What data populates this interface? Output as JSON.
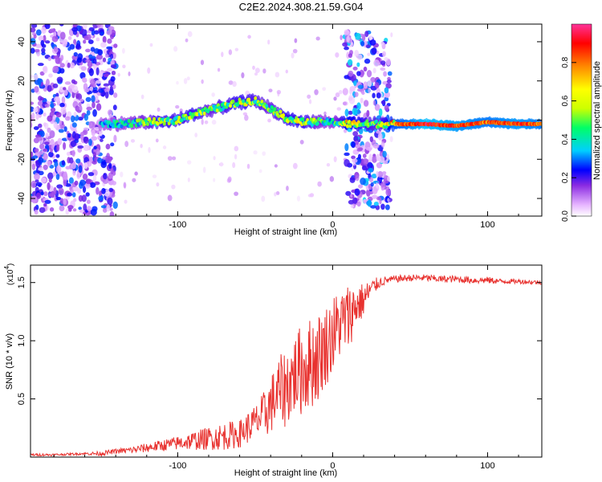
{
  "title": "C2E2.2024.308.21.59.G04",
  "chart_data": [
    {
      "type": "heatmap",
      "xlabel": "Height of straight line (km)",
      "ylabel": "Frequency (Hz)",
      "xlim": [
        -195,
        135
      ],
      "ylim": [
        -49,
        49
      ],
      "xticks": [
        -100,
        0,
        100
      ],
      "xtick_labels": [
        "-100",
        "0",
        "100"
      ],
      "yticks": [
        -40,
        -20,
        0,
        20,
        40
      ],
      "ytick_labels": [
        "-40",
        "-20",
        "0",
        "20",
        "40"
      ],
      "colorbar": {
        "label": "Normalized spectral amplitude",
        "range": [
          0,
          1
        ],
        "ticks": [
          0.0,
          0.2,
          0.4,
          0.6,
          0.8
        ],
        "tick_labels": [
          "0.0",
          "0.2",
          "0.4",
          "0.6",
          "0.8"
        ],
        "colors": [
          "#ffffff",
          "#e6b3ff",
          "#8a2be2",
          "#0000ff",
          "#00cfff",
          "#00ff66",
          "#ccff00",
          "#ffff00",
          "#ff8800",
          "#ff0000",
          "#ff3399"
        ]
      },
      "ridge": {
        "description_free": true,
        "x": [
          -150,
          -140,
          -130,
          -120,
          -110,
          -100,
          -90,
          -80,
          -70,
          -60,
          -50,
          -40,
          -30,
          -20,
          -10,
          0,
          10,
          20,
          30,
          40,
          60,
          80,
          100,
          120,
          135
        ],
        "freq": [
          -2,
          -2,
          -1.5,
          -1,
          -1,
          0,
          3,
          5,
          7,
          9,
          10,
          6,
          1,
          -1,
          -1,
          -1,
          -2,
          -2,
          -2,
          -2,
          -2,
          -3,
          -1,
          -2,
          -2
        ],
        "amplitude": [
          0.35,
          0.4,
          0.45,
          0.5,
          0.6,
          0.55,
          0.6,
          0.5,
          0.55,
          0.6,
          0.55,
          0.5,
          0.6,
          0.6,
          0.5,
          0.4,
          0.7,
          0.6,
          0.5,
          0.8,
          0.95,
          0.9,
          0.85,
          0.9,
          0.85
        ]
      },
      "noise_regions": [
        {
          "x": [
            -195,
            -140
          ],
          "freq": [
            -49,
            49
          ],
          "amplitude": 0.25
        },
        {
          "x": [
            8,
            37
          ],
          "freq": [
            -45,
            45
          ],
          "amplitude": 0.3
        }
      ],
      "grid": false
    },
    {
      "type": "line",
      "xlabel": "Height of straight line (km)",
      "ylabel": "SNR (10 * v/v)",
      "scale_label": "(x10",
      "scale_exponent": "4",
      "scale_suffix": ")",
      "xlim": [
        -195,
        135
      ],
      "ylim": [
        0,
        1.65
      ],
      "xticks": [
        -100,
        0,
        100
      ],
      "xtick_labels": [
        "-100",
        "0",
        "100"
      ],
      "yticks": [
        0.5,
        1.0,
        1.5
      ],
      "ytick_labels": [
        "0.5",
        "1.0",
        "1.5"
      ],
      "color": "#e8322f",
      "series": [
        {
          "x": [
            -195,
            -180,
            -160,
            -150,
            -140,
            -130,
            -120,
            -110,
            -100,
            -90,
            -80,
            -70,
            -60,
            -50,
            -45,
            -40,
            -35,
            -30,
            -25,
            -20,
            -15,
            -10,
            -5,
            0,
            5,
            10,
            15,
            20,
            25,
            30,
            35,
            40,
            50,
            60,
            70,
            80,
            90,
            100,
            110,
            120,
            135
          ],
          "values": [
            0.02,
            0.02,
            0.03,
            0.03,
            0.05,
            0.06,
            0.08,
            0.1,
            0.12,
            0.14,
            0.16,
            0.18,
            0.2,
            0.3,
            0.35,
            0.45,
            0.55,
            0.6,
            0.7,
            0.75,
            0.8,
            0.85,
            0.95,
            1.05,
            1.15,
            1.2,
            1.3,
            1.35,
            1.45,
            1.5,
            1.52,
            1.53,
            1.54,
            1.54,
            1.53,
            1.53,
            1.52,
            1.52,
            1.51,
            1.51,
            1.5
          ],
          "fluctuation": [
            0.01,
            0.01,
            0.01,
            0.02,
            0.02,
            0.03,
            0.04,
            0.05,
            0.06,
            0.08,
            0.1,
            0.12,
            0.12,
            0.15,
            0.2,
            0.25,
            0.3,
            0.35,
            0.35,
            0.4,
            0.4,
            0.4,
            0.35,
            0.35,
            0.3,
            0.3,
            0.2,
            0.15,
            0.08,
            0.05,
            0.03,
            0.03,
            0.03,
            0.03,
            0.03,
            0.03,
            0.03,
            0.03,
            0.02,
            0.02,
            0.02
          ]
        }
      ],
      "grid": false
    }
  ]
}
